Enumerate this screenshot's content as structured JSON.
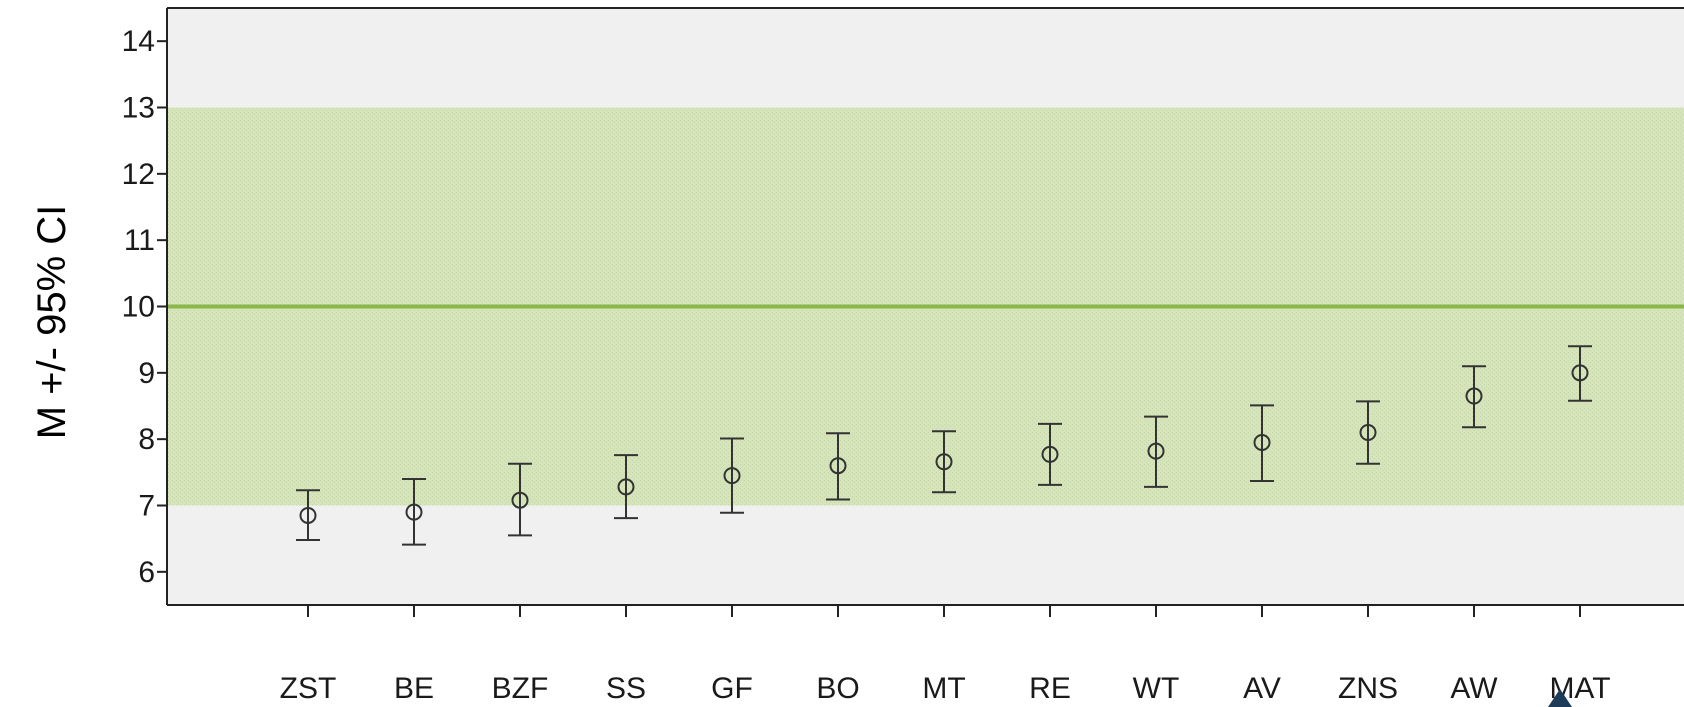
{
  "chart_data": {
    "type": "errorbar",
    "title": "",
    "xlabel": "",
    "ylabel": "M +/- 95% CI",
    "ylim": [
      5.5,
      14.5
    ],
    "yticks": [
      6,
      7,
      8,
      9,
      10,
      11,
      12,
      13,
      14
    ],
    "grid": false,
    "reference_band": {
      "low": 7,
      "high": 13,
      "color": "#d3e2b8"
    },
    "reference_line": {
      "value": 10,
      "color": "#8ab64a"
    },
    "plot_background": "#f0f0f0",
    "categories": [
      "ZST",
      "BE",
      "BZF",
      "SS",
      "GF",
      "BO",
      "MT",
      "RE",
      "WT",
      "AV",
      "ZNS",
      "AW",
      "MAT"
    ],
    "series": [
      {
        "mean": [
          6.85,
          6.9,
          7.08,
          7.28,
          7.45,
          7.6,
          7.66,
          7.77,
          7.82,
          7.95,
          8.1,
          8.65,
          9.0
        ],
        "lower": [
          6.48,
          6.41,
          6.55,
          6.81,
          6.89,
          7.09,
          7.2,
          7.31,
          7.28,
          7.37,
          7.63,
          8.18,
          8.58
        ],
        "upper": [
          7.23,
          7.4,
          7.63,
          7.76,
          8.01,
          8.09,
          8.12,
          8.23,
          8.34,
          8.51,
          8.57,
          9.1,
          9.4
        ]
      }
    ]
  }
}
